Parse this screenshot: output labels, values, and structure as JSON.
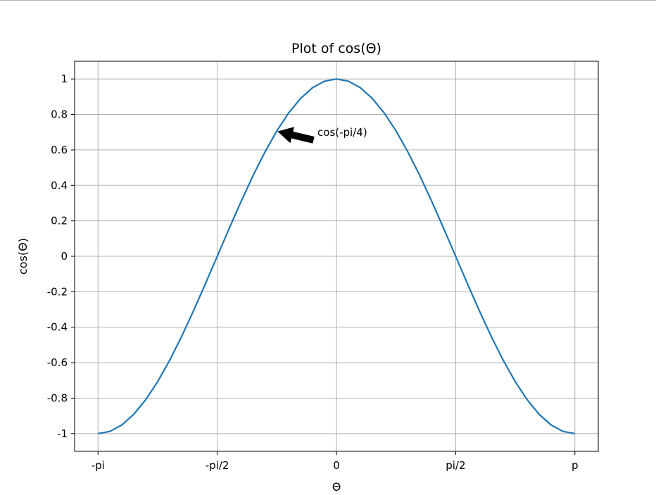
{
  "chart_data": {
    "type": "line",
    "title": "Plot of cos(Θ)",
    "xlabel": "Θ",
    "ylabel": "cos(Θ)",
    "xlim": [
      -3.45,
      3.45
    ],
    "ylim": [
      -1.1,
      1.1
    ],
    "grid": true,
    "xticks": [
      {
        "value": -3.14159265,
        "label": "-pi"
      },
      {
        "value": -1.5707963,
        "label": "-pi/2"
      },
      {
        "value": 0,
        "label": "0"
      },
      {
        "value": 1.5707963,
        "label": "pi/2"
      },
      {
        "value": 3.14159265,
        "label": "p"
      }
    ],
    "yticks": [
      {
        "value": 1,
        "label": "1"
      },
      {
        "value": 0.8,
        "label": "0.8"
      },
      {
        "value": 0.6,
        "label": "0.6"
      },
      {
        "value": 0.4,
        "label": "0.4"
      },
      {
        "value": 0.2,
        "label": "0.2"
      },
      {
        "value": 0,
        "label": "0"
      },
      {
        "value": -0.2,
        "label": "-0.2"
      },
      {
        "value": -0.4,
        "label": "-0.4"
      },
      {
        "value": -0.6,
        "label": "-0.6"
      },
      {
        "value": -0.8,
        "label": "-0.8"
      },
      {
        "value": -1,
        "label": "-1"
      }
    ],
    "series": [
      {
        "color": "#1f77b4",
        "x": [
          -3.1416,
          -2.9845,
          -2.8274,
          -2.6704,
          -2.5133,
          -2.3562,
          -2.1991,
          -2.042,
          -1.885,
          -1.7279,
          -1.5708,
          -1.4137,
          -1.2566,
          -1.0996,
          -0.9425,
          -0.7854,
          -0.6283,
          -0.4712,
          -0.3142,
          -0.1571,
          0.0,
          0.1571,
          0.3142,
          0.4712,
          0.6283,
          0.7854,
          0.9425,
          1.0996,
          1.2566,
          1.4137,
          1.5708,
          1.7279,
          1.885,
          2.042,
          2.1991,
          2.3562,
          2.5133,
          2.6704,
          2.8274,
          2.9845,
          3.1416
        ],
        "y": [
          -1.0,
          -0.9877,
          -0.9511,
          -0.891,
          -0.809,
          -0.7071,
          -0.5878,
          -0.454,
          -0.309,
          -0.1564,
          0.0,
          0.1564,
          0.309,
          0.454,
          0.5878,
          0.7071,
          0.809,
          0.891,
          0.9511,
          0.9877,
          1.0,
          0.9877,
          0.9511,
          0.891,
          0.809,
          0.7071,
          0.5878,
          0.454,
          0.309,
          0.1564,
          0.0,
          -0.1564,
          -0.309,
          -0.454,
          -0.5878,
          -0.7071,
          -0.809,
          -0.891,
          -0.9511,
          -0.9877,
          -1.0
        ]
      }
    ],
    "annotations": [
      {
        "text": "cos(-pi/4)",
        "xy": [
          -0.7854,
          0.7071
        ],
        "xytext": [
          -0.25,
          0.68
        ],
        "arrow_color": "#000000"
      }
    ]
  }
}
